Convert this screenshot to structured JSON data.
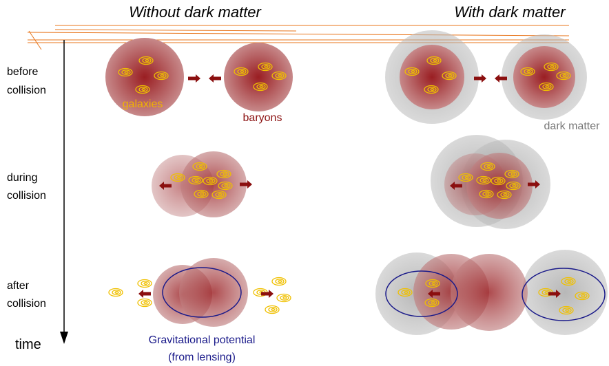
{
  "headers": {
    "left": "Without dark matter",
    "right": "With dark matter"
  },
  "rows": [
    {
      "label": [
        "before",
        "collision"
      ]
    },
    {
      "label": [
        "during",
        "collision"
      ]
    },
    {
      "label": [
        "after",
        "collision"
      ]
    }
  ],
  "labels": {
    "galaxies": "galaxies",
    "baryons": "baryons",
    "dark_matter": "dark matter",
    "potential": [
      "Gravitational potential",
      "(from lensing)"
    ],
    "time": "time"
  }
}
